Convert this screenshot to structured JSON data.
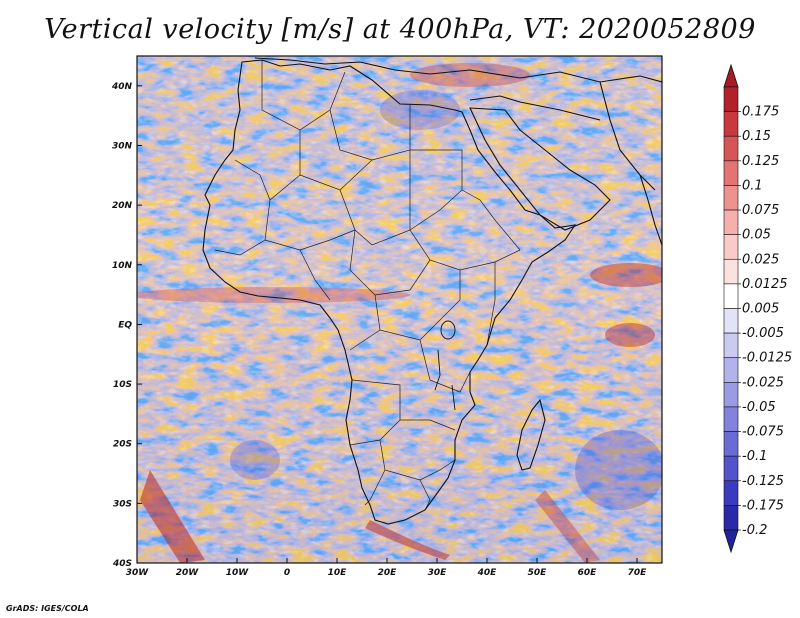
{
  "title": "Vertical velocity [m/s] at 400hPa, VT: 2020052809",
  "footer": "GrADS: IGES/COLA",
  "map": {
    "lon_range": [
      -30,
      75
    ],
    "lat_range": [
      -40,
      45
    ],
    "x_ticks": [
      {
        "lon": -30,
        "label": "30W"
      },
      {
        "lon": -20,
        "label": "20W"
      },
      {
        "lon": -10,
        "label": "10W"
      },
      {
        "lon": 0,
        "label": "0"
      },
      {
        "lon": 10,
        "label": "10E"
      },
      {
        "lon": 20,
        "label": "20E"
      },
      {
        "lon": 30,
        "label": "30E"
      },
      {
        "lon": 40,
        "label": "40E"
      },
      {
        "lon": 50,
        "label": "50E"
      },
      {
        "lon": 60,
        "label": "60E"
      },
      {
        "lon": 70,
        "label": "70E"
      }
    ],
    "y_ticks": [
      {
        "lat": 40,
        "label": "40N"
      },
      {
        "lat": 30,
        "label": "30N"
      },
      {
        "lat": 20,
        "label": "20N"
      },
      {
        "lat": 10,
        "label": "10N"
      },
      {
        "lat": 0,
        "label": "EQ"
      },
      {
        "lat": -10,
        "label": "10S"
      },
      {
        "lat": -20,
        "label": "20S"
      },
      {
        "lat": -30,
        "label": "30S"
      },
      {
        "lat": -40,
        "label": "40S"
      }
    ],
    "colors": {
      "land_outline": "#111111",
      "background": "#f6f4fa"
    }
  },
  "colorbar": {
    "levels": [
      {
        "label": "0.175",
        "color": "#b3202a"
      },
      {
        "label": "0.15",
        "color": "#c8383d"
      },
      {
        "label": "0.125",
        "color": "#d75556"
      },
      {
        "label": "0.1",
        "color": "#e27471"
      },
      {
        "label": "0.075",
        "color": "#ec938f"
      },
      {
        "label": "0.05",
        "color": "#f3b0ad"
      },
      {
        "label": "0.025",
        "color": "#f8cbc9"
      },
      {
        "label": "0.0125",
        "color": "#fbe2e1"
      },
      {
        "label": "0.005",
        "color": "#ffffff"
      },
      {
        "label": "-0.005",
        "color": "#e3e3f7"
      },
      {
        "label": "-0.0125",
        "color": "#cbcbf1"
      },
      {
        "label": "-0.025",
        "color": "#b3b3eb"
      },
      {
        "label": "-0.05",
        "color": "#9b9be4"
      },
      {
        "label": "-0.075",
        "color": "#8383de"
      },
      {
        "label": "-0.1",
        "color": "#6b6bd6"
      },
      {
        "label": "-0.125",
        "color": "#5353cc"
      },
      {
        "label": "-0.175",
        "color": "#3b3bbf"
      },
      {
        "label": "-0.2",
        "color": "#2a2aa8"
      }
    ],
    "top_triangle_color": "#a61b24",
    "bottom_triangle_color": "#22229a"
  }
}
